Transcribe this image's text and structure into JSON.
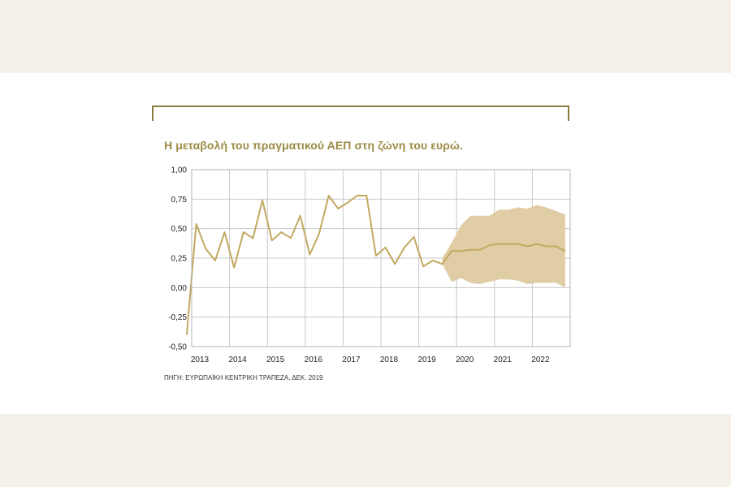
{
  "chart_data": {
    "type": "line",
    "title": "Η μεταβολή του πραγματικού ΑΕΠ στη ζώνη του ευρώ.",
    "source": "ΠΗΓΗ: ΕΥΡΩΠΑΪΚΗ ΚΕΝΤΡΙΚΗ ΤΡΑΠΕΖΑ, ΔΕΚ. 2019",
    "xlabel": "",
    "ylabel": "",
    "xlim": [
      2013,
      2023
    ],
    "ylim": [
      -0.5,
      1.0
    ],
    "grid": true,
    "x_ticks": [
      {
        "value": 2013,
        "label": "2013"
      },
      {
        "value": 2014,
        "label": "2014"
      },
      {
        "value": 2015,
        "label": "2015"
      },
      {
        "value": 2016,
        "label": "2016"
      },
      {
        "value": 2017,
        "label": "2017"
      },
      {
        "value": 2018,
        "label": "2018"
      },
      {
        "value": 2019,
        "label": "2019"
      },
      {
        "value": 2020,
        "label": "2020"
      },
      {
        "value": 2021,
        "label": "2021"
      },
      {
        "value": 2022,
        "label": "2022"
      }
    ],
    "y_ticks": [
      {
        "value": 1.0,
        "label": "1,00"
      },
      {
        "value": 0.75,
        "label": "0,75"
      },
      {
        "value": 0.5,
        "label": "0,50"
      },
      {
        "value": 0.25,
        "label": "0,25"
      },
      {
        "value": 0.0,
        "label": "0,00"
      },
      {
        "value": -0.25,
        "label": "-0,25"
      },
      {
        "value": -0.5,
        "label": "-0,50"
      }
    ],
    "series": [
      {
        "color": "#c2a961",
        "x": [
          2012.87,
          2013.12,
          2013.37,
          2013.62,
          2013.87,
          2014.12,
          2014.37,
          2014.62,
          2014.87,
          2015.12,
          2015.37,
          2015.62,
          2015.87,
          2016.12,
          2016.37,
          2016.62,
          2016.87,
          2017.12,
          2017.37,
          2017.62,
          2017.87,
          2018.12,
          2018.37,
          2018.62,
          2018.87,
          2019.12,
          2019.37,
          2019.62,
          2019.87,
          2020.12,
          2020.37,
          2020.62,
          2020.87,
          2021.12,
          2021.37,
          2021.62,
          2021.87,
          2022.12,
          2022.37,
          2022.62,
          2022.87
        ],
        "y": [
          -0.4,
          0.54,
          0.33,
          0.23,
          0.47,
          0.17,
          0.47,
          0.42,
          0.74,
          0.4,
          0.47,
          0.42,
          0.61,
          0.28,
          0.46,
          0.78,
          0.67,
          0.72,
          0.78,
          0.78,
          0.27,
          0.34,
          0.2,
          0.34,
          0.43,
          0.18,
          0.23,
          0.2,
          0.31,
          0.31,
          0.32,
          0.32,
          0.36,
          0.37,
          0.37,
          0.37,
          0.35,
          0.37,
          0.35,
          0.35,
          0.31
        ]
      }
    ],
    "band": {
      "color": "#e0cda6",
      "x": [
        2019.62,
        2019.87,
        2020.12,
        2020.37,
        2020.62,
        2020.87,
        2021.12,
        2021.37,
        2021.62,
        2021.87,
        2022.12,
        2022.37,
        2022.62,
        2022.87
      ],
      "upper": [
        0.25,
        0.38,
        0.53,
        0.61,
        0.61,
        0.61,
        0.66,
        0.66,
        0.68,
        0.67,
        0.7,
        0.68,
        0.65,
        0.62
      ],
      "lower": [
        0.2,
        0.05,
        0.08,
        0.04,
        0.03,
        0.05,
        0.07,
        0.07,
        0.06,
        0.03,
        0.04,
        0.04,
        0.04,
        0.0
      ]
    }
  }
}
